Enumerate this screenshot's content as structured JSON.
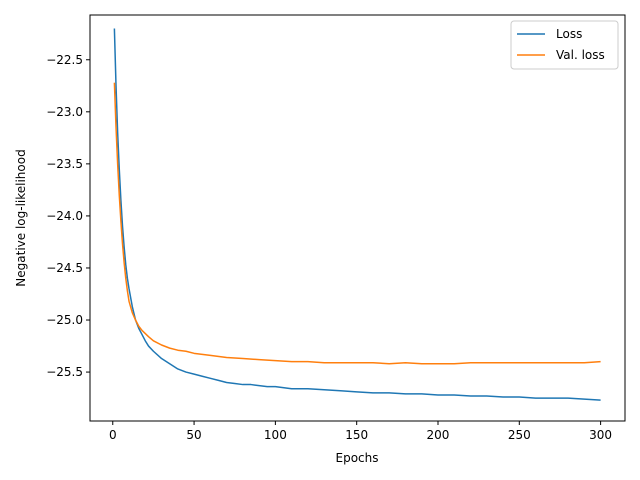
{
  "chart_data": {
    "type": "line",
    "title": "",
    "xlabel": "Epochs",
    "ylabel": "Negative log-likelihood",
    "xlim": [
      -14,
      315
    ],
    "ylim": [
      -25.97,
      -22.07
    ],
    "xticks": [
      0,
      50,
      100,
      150,
      200,
      250,
      300
    ],
    "xtick_labels": [
      "0",
      "50",
      "100",
      "150",
      "200",
      "250",
      "300"
    ],
    "yticks": [
      -22.5,
      -23.0,
      -23.5,
      -24.0,
      -24.5,
      -25.0,
      -25.5
    ],
    "ytick_labels": [
      "−22.5",
      "−23.0",
      "−23.5",
      "−24.0",
      "−24.5",
      "−25.0",
      "−25.5"
    ],
    "grid": false,
    "legend_position": "upper right",
    "colors": {
      "Loss": "#1f77b4",
      "Val. loss": "#ff7f0e"
    },
    "series": [
      {
        "name": "Loss",
        "color": "#1f77b4",
        "x": [
          1,
          2,
          3,
          4,
          5,
          6,
          7,
          8,
          9,
          10,
          12,
          14,
          16,
          18,
          20,
          22,
          25,
          30,
          35,
          40,
          45,
          50,
          55,
          60,
          65,
          70,
          75,
          80,
          85,
          90,
          95,
          100,
          110,
          120,
          130,
          140,
          150,
          160,
          170,
          180,
          190,
          200,
          210,
          220,
          230,
          240,
          250,
          260,
          270,
          280,
          290,
          300
        ],
        "values": [
          -22.2,
          -22.75,
          -23.2,
          -23.55,
          -23.85,
          -24.1,
          -24.3,
          -24.47,
          -24.6,
          -24.7,
          -24.87,
          -25.0,
          -25.08,
          -25.14,
          -25.2,
          -25.25,
          -25.3,
          -25.37,
          -25.42,
          -25.47,
          -25.5,
          -25.52,
          -25.54,
          -25.56,
          -25.58,
          -25.6,
          -25.61,
          -25.62,
          -25.62,
          -25.63,
          -25.64,
          -25.64,
          -25.66,
          -25.66,
          -25.67,
          -25.68,
          -25.69,
          -25.7,
          -25.7,
          -25.71,
          -25.71,
          -25.72,
          -25.72,
          -25.73,
          -25.73,
          -25.74,
          -25.74,
          -25.75,
          -25.75,
          -25.75,
          -25.76,
          -25.77
        ]
      },
      {
        "name": "Val. loss",
        "color": "#ff7f0e",
        "x": [
          1,
          2,
          3,
          4,
          5,
          6,
          7,
          8,
          9,
          10,
          12,
          14,
          16,
          18,
          20,
          22,
          25,
          30,
          35,
          40,
          45,
          50,
          60,
          70,
          80,
          90,
          100,
          110,
          120,
          130,
          140,
          150,
          160,
          170,
          180,
          190,
          200,
          210,
          220,
          230,
          240,
          250,
          260,
          270,
          280,
          290,
          300
        ],
        "values": [
          -22.72,
          -23.15,
          -23.5,
          -23.8,
          -24.05,
          -24.27,
          -24.45,
          -24.6,
          -24.72,
          -24.82,
          -24.93,
          -25.0,
          -25.06,
          -25.1,
          -25.13,
          -25.16,
          -25.2,
          -25.24,
          -25.27,
          -25.29,
          -25.3,
          -25.32,
          -25.34,
          -25.36,
          -25.37,
          -25.38,
          -25.39,
          -25.4,
          -25.4,
          -25.41,
          -25.41,
          -25.41,
          -25.41,
          -25.42,
          -25.41,
          -25.42,
          -25.42,
          -25.42,
          -25.41,
          -25.41,
          -25.41,
          -25.41,
          -25.41,
          -25.41,
          -25.41,
          -25.41,
          -25.4
        ]
      }
    ]
  }
}
